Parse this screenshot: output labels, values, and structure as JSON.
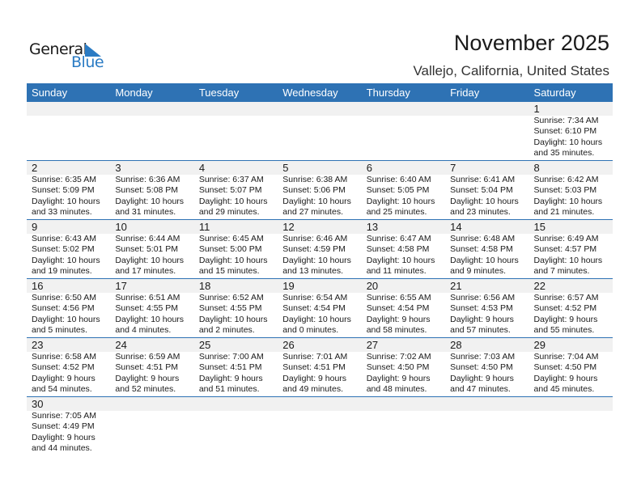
{
  "logo": {
    "word1": "General",
    "word2": "Blue",
    "color": "#2a7bc4"
  },
  "title": "November 2025",
  "location": "Vallejo, California, United States",
  "header_color": "#2e72b4",
  "weekdays": [
    "Sunday",
    "Monday",
    "Tuesday",
    "Wednesday",
    "Thursday",
    "Friday",
    "Saturday"
  ],
  "weeks": [
    [
      null,
      null,
      null,
      null,
      null,
      null,
      {
        "day": "1",
        "sunrise": "Sunrise: 7:34 AM",
        "sunset": "Sunset: 6:10 PM",
        "daylight1": "Daylight: 10 hours",
        "daylight2": "and 35 minutes."
      }
    ],
    [
      {
        "day": "2",
        "sunrise": "Sunrise: 6:35 AM",
        "sunset": "Sunset: 5:09 PM",
        "daylight1": "Daylight: 10 hours",
        "daylight2": "and 33 minutes."
      },
      {
        "day": "3",
        "sunrise": "Sunrise: 6:36 AM",
        "sunset": "Sunset: 5:08 PM",
        "daylight1": "Daylight: 10 hours",
        "daylight2": "and 31 minutes."
      },
      {
        "day": "4",
        "sunrise": "Sunrise: 6:37 AM",
        "sunset": "Sunset: 5:07 PM",
        "daylight1": "Daylight: 10 hours",
        "daylight2": "and 29 minutes."
      },
      {
        "day": "5",
        "sunrise": "Sunrise: 6:38 AM",
        "sunset": "Sunset: 5:06 PM",
        "daylight1": "Daylight: 10 hours",
        "daylight2": "and 27 minutes."
      },
      {
        "day": "6",
        "sunrise": "Sunrise: 6:40 AM",
        "sunset": "Sunset: 5:05 PM",
        "daylight1": "Daylight: 10 hours",
        "daylight2": "and 25 minutes."
      },
      {
        "day": "7",
        "sunrise": "Sunrise: 6:41 AM",
        "sunset": "Sunset: 5:04 PM",
        "daylight1": "Daylight: 10 hours",
        "daylight2": "and 23 minutes."
      },
      {
        "day": "8",
        "sunrise": "Sunrise: 6:42 AM",
        "sunset": "Sunset: 5:03 PM",
        "daylight1": "Daylight: 10 hours",
        "daylight2": "and 21 minutes."
      }
    ],
    [
      {
        "day": "9",
        "sunrise": "Sunrise: 6:43 AM",
        "sunset": "Sunset: 5:02 PM",
        "daylight1": "Daylight: 10 hours",
        "daylight2": "and 19 minutes."
      },
      {
        "day": "10",
        "sunrise": "Sunrise: 6:44 AM",
        "sunset": "Sunset: 5:01 PM",
        "daylight1": "Daylight: 10 hours",
        "daylight2": "and 17 minutes."
      },
      {
        "day": "11",
        "sunrise": "Sunrise: 6:45 AM",
        "sunset": "Sunset: 5:00 PM",
        "daylight1": "Daylight: 10 hours",
        "daylight2": "and 15 minutes."
      },
      {
        "day": "12",
        "sunrise": "Sunrise: 6:46 AM",
        "sunset": "Sunset: 4:59 PM",
        "daylight1": "Daylight: 10 hours",
        "daylight2": "and 13 minutes."
      },
      {
        "day": "13",
        "sunrise": "Sunrise: 6:47 AM",
        "sunset": "Sunset: 4:58 PM",
        "daylight1": "Daylight: 10 hours",
        "daylight2": "and 11 minutes."
      },
      {
        "day": "14",
        "sunrise": "Sunrise: 6:48 AM",
        "sunset": "Sunset: 4:58 PM",
        "daylight1": "Daylight: 10 hours",
        "daylight2": "and 9 minutes."
      },
      {
        "day": "15",
        "sunrise": "Sunrise: 6:49 AM",
        "sunset": "Sunset: 4:57 PM",
        "daylight1": "Daylight: 10 hours",
        "daylight2": "and 7 minutes."
      }
    ],
    [
      {
        "day": "16",
        "sunrise": "Sunrise: 6:50 AM",
        "sunset": "Sunset: 4:56 PM",
        "daylight1": "Daylight: 10 hours",
        "daylight2": "and 5 minutes."
      },
      {
        "day": "17",
        "sunrise": "Sunrise: 6:51 AM",
        "sunset": "Sunset: 4:55 PM",
        "daylight1": "Daylight: 10 hours",
        "daylight2": "and 4 minutes."
      },
      {
        "day": "18",
        "sunrise": "Sunrise: 6:52 AM",
        "sunset": "Sunset: 4:55 PM",
        "daylight1": "Daylight: 10 hours",
        "daylight2": "and 2 minutes."
      },
      {
        "day": "19",
        "sunrise": "Sunrise: 6:54 AM",
        "sunset": "Sunset: 4:54 PM",
        "daylight1": "Daylight: 10 hours",
        "daylight2": "and 0 minutes."
      },
      {
        "day": "20",
        "sunrise": "Sunrise: 6:55 AM",
        "sunset": "Sunset: 4:54 PM",
        "daylight1": "Daylight: 9 hours",
        "daylight2": "and 58 minutes."
      },
      {
        "day": "21",
        "sunrise": "Sunrise: 6:56 AM",
        "sunset": "Sunset: 4:53 PM",
        "daylight1": "Daylight: 9 hours",
        "daylight2": "and 57 minutes."
      },
      {
        "day": "22",
        "sunrise": "Sunrise: 6:57 AM",
        "sunset": "Sunset: 4:52 PM",
        "daylight1": "Daylight: 9 hours",
        "daylight2": "and 55 minutes."
      }
    ],
    [
      {
        "day": "23",
        "sunrise": "Sunrise: 6:58 AM",
        "sunset": "Sunset: 4:52 PM",
        "daylight1": "Daylight: 9 hours",
        "daylight2": "and 54 minutes."
      },
      {
        "day": "24",
        "sunrise": "Sunrise: 6:59 AM",
        "sunset": "Sunset: 4:51 PM",
        "daylight1": "Daylight: 9 hours",
        "daylight2": "and 52 minutes."
      },
      {
        "day": "25",
        "sunrise": "Sunrise: 7:00 AM",
        "sunset": "Sunset: 4:51 PM",
        "daylight1": "Daylight: 9 hours",
        "daylight2": "and 51 minutes."
      },
      {
        "day": "26",
        "sunrise": "Sunrise: 7:01 AM",
        "sunset": "Sunset: 4:51 PM",
        "daylight1": "Daylight: 9 hours",
        "daylight2": "and 49 minutes."
      },
      {
        "day": "27",
        "sunrise": "Sunrise: 7:02 AM",
        "sunset": "Sunset: 4:50 PM",
        "daylight1": "Daylight: 9 hours",
        "daylight2": "and 48 minutes."
      },
      {
        "day": "28",
        "sunrise": "Sunrise: 7:03 AM",
        "sunset": "Sunset: 4:50 PM",
        "daylight1": "Daylight: 9 hours",
        "daylight2": "and 47 minutes."
      },
      {
        "day": "29",
        "sunrise": "Sunrise: 7:04 AM",
        "sunset": "Sunset: 4:50 PM",
        "daylight1": "Daylight: 9 hours",
        "daylight2": "and 45 minutes."
      }
    ],
    [
      {
        "day": "30",
        "sunrise": "Sunrise: 7:05 AM",
        "sunset": "Sunset: 4:49 PM",
        "daylight1": "Daylight: 9 hours",
        "daylight2": "and 44 minutes."
      },
      null,
      null,
      null,
      null,
      null,
      null
    ]
  ]
}
